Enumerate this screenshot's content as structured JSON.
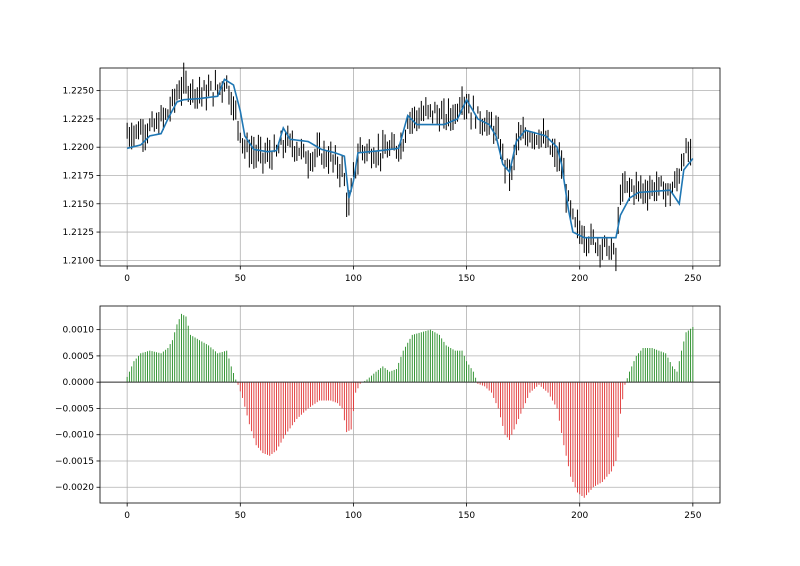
{
  "chart_data": [
    {
      "type": "ohlc_bars_with_line",
      "title": "",
      "xlabel": "",
      "ylabel": "",
      "xlim": [
        -12,
        262
      ],
      "ylim": [
        1.2095,
        1.227
      ],
      "x_ticks": [
        0,
        50,
        100,
        150,
        200,
        250
      ],
      "y_ticks": [
        1.21,
        1.2125,
        1.215,
        1.2175,
        1.22,
        1.2225,
        1.225
      ],
      "x_tick_labels": [
        "0",
        "50",
        "100",
        "150",
        "200",
        "250"
      ],
      "y_tick_labels": [
        "1.2100",
        "1.2125",
        "1.2150",
        "1.2175",
        "1.2200",
        "1.2225",
        "1.2250"
      ],
      "grid": true,
      "bar_color": "#000000",
      "line_color": "#1f77b4",
      "price_path": [
        [
          0,
          1.2212
        ],
        [
          5,
          1.2215
        ],
        [
          12,
          1.2218
        ],
        [
          18,
          1.223
        ],
        [
          22,
          1.2248
        ],
        [
          25,
          1.2255
        ],
        [
          30,
          1.225
        ],
        [
          35,
          1.2248
        ],
        [
          40,
          1.2252
        ],
        [
          44,
          1.2258
        ],
        [
          47,
          1.2235
        ],
        [
          52,
          1.22
        ],
        [
          56,
          1.2195
        ],
        [
          60,
          1.2192
        ],
        [
          66,
          1.2195
        ],
        [
          70,
          1.2205
        ],
        [
          75,
          1.22
        ],
        [
          80,
          1.219
        ],
        [
          85,
          1.2195
        ],
        [
          90,
          1.219
        ],
        [
          95,
          1.218
        ],
        [
          98,
          1.2145
        ],
        [
          100,
          1.2175
        ],
        [
          103,
          1.2198
        ],
        [
          110,
          1.2195
        ],
        [
          118,
          1.2198
        ],
        [
          122,
          1.2205
        ],
        [
          124,
          1.2225
        ],
        [
          130,
          1.2228
        ],
        [
          135,
          1.2232
        ],
        [
          140,
          1.2225
        ],
        [
          145,
          1.223
        ],
        [
          148,
          1.2245
        ],
        [
          152,
          1.2232
        ],
        [
          158,
          1.2222
        ],
        [
          163,
          1.2215
        ],
        [
          167,
          1.2185
        ],
        [
          170,
          1.2175
        ],
        [
          172,
          1.2205
        ],
        [
          178,
          1.2212
        ],
        [
          183,
          1.221
        ],
        [
          188,
          1.2195
        ],
        [
          192,
          1.2185
        ],
        [
          195,
          1.215
        ],
        [
          198,
          1.213
        ],
        [
          203,
          1.212
        ],
        [
          208,
          1.2115
        ],
        [
          213,
          1.211
        ],
        [
          216,
          1.2103
        ],
        [
          218,
          1.216
        ],
        [
          222,
          1.2165
        ],
        [
          228,
          1.2162
        ],
        [
          235,
          1.2165
        ],
        [
          240,
          1.216
        ],
        [
          243,
          1.217
        ],
        [
          246,
          1.2195
        ],
        [
          250,
          1.2192
        ]
      ],
      "line_path": [
        [
          0,
          1.2199
        ],
        [
          6,
          1.2202
        ],
        [
          10,
          1.221
        ],
        [
          15,
          1.2212
        ],
        [
          18,
          1.2225
        ],
        [
          22,
          1.224
        ],
        [
          25,
          1.2242
        ],
        [
          32,
          1.2243
        ],
        [
          40,
          1.2245
        ],
        [
          43,
          1.226
        ],
        [
          47,
          1.2255
        ],
        [
          50,
          1.2232
        ],
        [
          52,
          1.221
        ],
        [
          56,
          1.2198
        ],
        [
          62,
          1.2196
        ],
        [
          66,
          1.2197
        ],
        [
          69,
          1.2217
        ],
        [
          72,
          1.2207
        ],
        [
          80,
          1.2205
        ],
        [
          86,
          1.2198
        ],
        [
          92,
          1.2195
        ],
        [
          96,
          1.2192
        ],
        [
          98,
          1.2155
        ],
        [
          100,
          1.217
        ],
        [
          102,
          1.2195
        ],
        [
          112,
          1.2197
        ],
        [
          120,
          1.2199
        ],
        [
          124,
          1.2228
        ],
        [
          128,
          1.222
        ],
        [
          140,
          1.222
        ],
        [
          146,
          1.2225
        ],
        [
          150,
          1.2242
        ],
        [
          155,
          1.2225
        ],
        [
          160,
          1.222
        ],
        [
          163,
          1.221
        ],
        [
          166,
          1.2185
        ],
        [
          169,
          1.2178
        ],
        [
          172,
          1.2205
        ],
        [
          176,
          1.2215
        ],
        [
          185,
          1.221
        ],
        [
          190,
          1.22
        ],
        [
          192,
          1.2185
        ],
        [
          195,
          1.2145
        ],
        [
          197,
          1.2125
        ],
        [
          202,
          1.212
        ],
        [
          210,
          1.212
        ],
        [
          216,
          1.212
        ],
        [
          218,
          1.214
        ],
        [
          222,
          1.2155
        ],
        [
          226,
          1.216
        ],
        [
          240,
          1.2162
        ],
        [
          244,
          1.215
        ],
        [
          246,
          1.218
        ],
        [
          250,
          1.219
        ]
      ]
    },
    {
      "type": "bar",
      "title": "",
      "xlabel": "",
      "ylabel": "",
      "xlim": [
        -12,
        262
      ],
      "ylim": [
        -0.0023,
        0.00145
      ],
      "x_ticks": [
        0,
        50,
        100,
        150,
        200,
        250
      ],
      "y_ticks": [
        -0.002,
        -0.0015,
        -0.001,
        -0.0005,
        0.0,
        0.0005,
        0.001
      ],
      "x_tick_labels": [
        "0",
        "50",
        "100",
        "150",
        "200",
        "250"
      ],
      "y_tick_labels": [
        "−0.0020",
        "−0.0015",
        "−0.0010",
        "−0.0005",
        "0.0000",
        "0.0005",
        "0.0010"
      ],
      "grid": true,
      "positive_color": "#228b22",
      "negative_color": "#e03030",
      "baseline_color": "#333333",
      "values_path": [
        [
          0,
          0.0001
        ],
        [
          3,
          0.0004
        ],
        [
          6,
          0.00055
        ],
        [
          10,
          0.0006
        ],
        [
          15,
          0.00055
        ],
        [
          18,
          0.00065
        ],
        [
          20,
          0.0008
        ],
        [
          22,
          0.0011
        ],
        [
          24,
          0.0013
        ],
        [
          26,
          0.00125
        ],
        [
          28,
          0.0009
        ],
        [
          32,
          0.0008
        ],
        [
          36,
          0.0007
        ],
        [
          40,
          0.00055
        ],
        [
          44,
          0.0006
        ],
        [
          46,
          0.0003
        ],
        [
          48,
          5e-05
        ],
        [
          49,
          -5e-05
        ],
        [
          51,
          -0.0003
        ],
        [
          54,
          -0.0008
        ],
        [
          57,
          -0.0012
        ],
        [
          60,
          -0.00135
        ],
        [
          63,
          -0.0014
        ],
        [
          66,
          -0.0013
        ],
        [
          70,
          -0.001
        ],
        [
          75,
          -0.0007
        ],
        [
          80,
          -0.0005
        ],
        [
          85,
          -0.00035
        ],
        [
          90,
          -0.00035
        ],
        [
          93,
          -0.0004
        ],
        [
          95,
          -0.0005
        ],
        [
          97,
          -0.00095
        ],
        [
          99,
          -0.0009
        ],
        [
          101,
          -0.0002
        ],
        [
          103,
          -3e-05
        ],
        [
          106,
          5e-05
        ],
        [
          110,
          0.0002
        ],
        [
          113,
          0.0003
        ],
        [
          116,
          0.0002
        ],
        [
          119,
          0.00025
        ],
        [
          122,
          0.0006
        ],
        [
          126,
          0.0009
        ],
        [
          130,
          0.00095
        ],
        [
          134,
          0.001
        ],
        [
          138,
          0.0009
        ],
        [
          141,
          0.0007
        ],
        [
          145,
          0.0006
        ],
        [
          148,
          0.0006
        ],
        [
          150,
          0.0004
        ],
        [
          153,
          0.0002
        ],
        [
          155,
          -3e-05
        ],
        [
          158,
          -8e-05
        ],
        [
          161,
          -0.0002
        ],
        [
          164,
          -0.0005
        ],
        [
          167,
          -0.001
        ],
        [
          169,
          -0.0011
        ],
        [
          172,
          -0.0008
        ],
        [
          175,
          -0.0005
        ],
        [
          178,
          -0.0002
        ],
        [
          182,
          -5e-05
        ],
        [
          186,
          -0.0002
        ],
        [
          190,
          -0.0005
        ],
        [
          193,
          -0.0012
        ],
        [
          196,
          -0.0018
        ],
        [
          199,
          -0.0021
        ],
        [
          202,
          -0.0022
        ],
        [
          206,
          -0.002
        ],
        [
          210,
          -0.0019
        ],
        [
          214,
          -0.0017
        ],
        [
          216,
          -0.0015
        ],
        [
          218,
          -0.0006
        ],
        [
          220,
          -5e-05
        ],
        [
          222,
          0.0002
        ],
        [
          225,
          0.0005
        ],
        [
          228,
          0.00065
        ],
        [
          232,
          0.00065
        ],
        [
          235,
          0.0006
        ],
        [
          238,
          0.00055
        ],
        [
          241,
          0.0003
        ],
        [
          243,
          0.0002
        ],
        [
          245,
          0.0006
        ],
        [
          247,
          0.00095
        ],
        [
          250,
          0.00105
        ]
      ]
    }
  ]
}
